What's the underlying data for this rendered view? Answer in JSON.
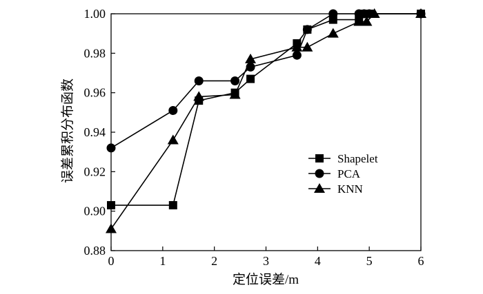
{
  "chart_data": {
    "type": "line",
    "xlabel": "定位误差/m",
    "ylabel": "误差累积分布函数",
    "xlim": [
      0,
      6
    ],
    "ylim": [
      0.88,
      1.0
    ],
    "xticks": [
      "0",
      "1",
      "2",
      "3",
      "4",
      "5",
      "6"
    ],
    "yticks": [
      "0.88",
      "0.90",
      "0.92",
      "0.94",
      "0.96",
      "0.98",
      "1.00"
    ],
    "grid": false,
    "legend_position": "right",
    "series": [
      {
        "name": "Shapelet",
        "marker": "square",
        "x": [
          0,
          1.2,
          1.7,
          2.4,
          2.7,
          3.6,
          3.8,
          4.3,
          4.8,
          4.9,
          5.0,
          6.0
        ],
        "y": [
          0.903,
          0.903,
          0.956,
          0.96,
          0.967,
          0.985,
          0.992,
          0.997,
          0.997,
          1.0,
          1.0,
          1.0
        ]
      },
      {
        "name": "PCA",
        "marker": "circle",
        "x": [
          0,
          1.2,
          1.7,
          2.4,
          2.7,
          3.6,
          3.8,
          4.3,
          4.8,
          4.9,
          5.0,
          6.0
        ],
        "y": [
          0.932,
          0.951,
          0.966,
          0.966,
          0.973,
          0.979,
          0.992,
          1.0,
          1.0,
          1.0,
          1.0,
          1.0
        ]
      },
      {
        "name": "KNN",
        "marker": "triangle",
        "x": [
          0,
          1.2,
          1.7,
          2.4,
          2.7,
          3.6,
          3.8,
          4.3,
          4.8,
          4.95,
          5.1,
          6.0
        ],
        "y": [
          0.891,
          0.936,
          0.958,
          0.959,
          0.977,
          0.983,
          0.983,
          0.99,
          0.996,
          0.996,
          1.0,
          1.0
        ]
      }
    ]
  }
}
